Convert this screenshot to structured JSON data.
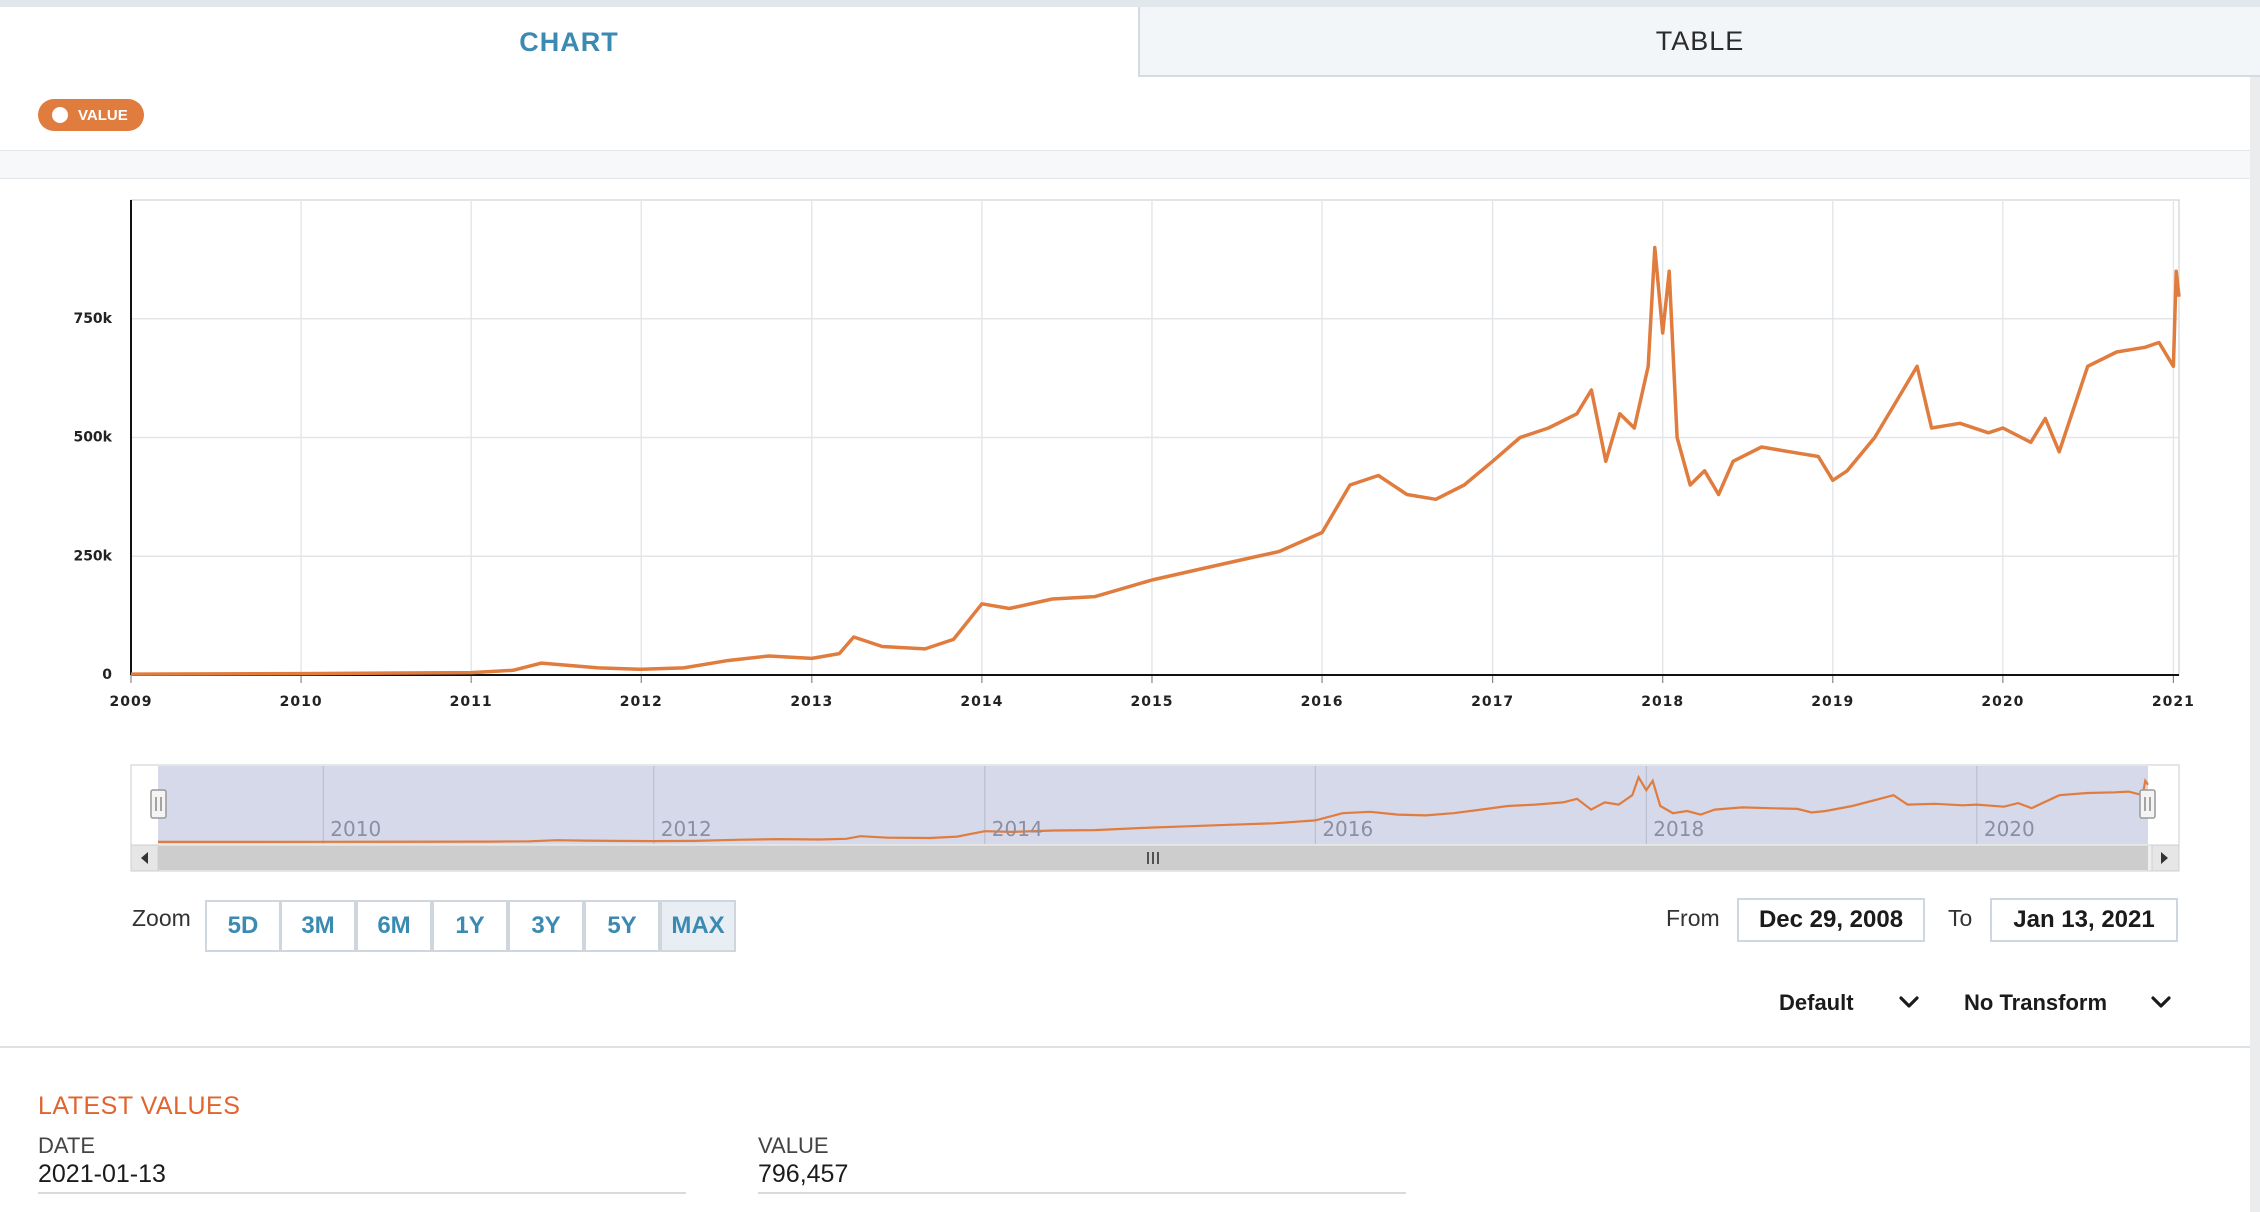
{
  "tabs": {
    "chart": "CHART",
    "table": "TABLE"
  },
  "legend": {
    "series_label": "VALUE"
  },
  "chart_data": {
    "type": "line",
    "title": "",
    "xlabel": "",
    "ylabel": "",
    "x_ticks": [
      "2009",
      "2010",
      "2011",
      "2012",
      "2013",
      "2014",
      "2015",
      "2016",
      "2017",
      "2018",
      "2019",
      "2020",
      "2021"
    ],
    "y_ticks": [
      "0",
      "250k",
      "500k",
      "750k"
    ],
    "xlim": [
      "2009-01-01",
      "2021-01-13"
    ],
    "ylim": [
      0,
      1000000
    ],
    "line_color": "#e07c3e",
    "grid": true,
    "series": [
      {
        "x": [
          "2009-01-01",
          "2010-01-01",
          "2011-01-01",
          "2011-04-01",
          "2011-06-01",
          "2011-08-01",
          "2011-10-01",
          "2012-01-01",
          "2012-04-01",
          "2012-07-01",
          "2012-10-01",
          "2013-01-01",
          "2013-03-01",
          "2013-04-01",
          "2013-06-01",
          "2013-09-01",
          "2013-11-01",
          "2014-01-01",
          "2014-03-01",
          "2014-06-01",
          "2014-09-01",
          "2015-01-01",
          "2015-04-01",
          "2015-07-01",
          "2015-10-01",
          "2016-01-01",
          "2016-03-01",
          "2016-05-01",
          "2016-07-01",
          "2016-09-01",
          "2016-11-01",
          "2017-01-01",
          "2017-03-01",
          "2017-05-01",
          "2017-07-01",
          "2017-08-01",
          "2017-09-01",
          "2017-10-01",
          "2017-11-01",
          "2017-12-01",
          "2017-12-15",
          "2018-01-01",
          "2018-01-15",
          "2018-02-01",
          "2018-03-01",
          "2018-04-01",
          "2018-05-01",
          "2018-06-01",
          "2018-08-01",
          "2018-10-01",
          "2018-12-01",
          "2019-01-01",
          "2019-02-01",
          "2019-04-01",
          "2019-06-01",
          "2019-07-01",
          "2019-08-01",
          "2019-10-01",
          "2019-12-01",
          "2020-01-01",
          "2020-03-01",
          "2020-04-01",
          "2020-05-01",
          "2020-07-01",
          "2020-09-01",
          "2020-11-01",
          "2020-12-01",
          "2021-01-01",
          "2021-01-07",
          "2021-01-13"
        ],
        "values": [
          2000,
          3000,
          5000,
          10000,
          25000,
          20000,
          15000,
          12000,
          15000,
          30000,
          40000,
          35000,
          45000,
          80000,
          60000,
          55000,
          75000,
          150000,
          140000,
          160000,
          165000,
          200000,
          220000,
          240000,
          260000,
          300000,
          400000,
          420000,
          380000,
          370000,
          400000,
          450000,
          500000,
          520000,
          550000,
          600000,
          450000,
          550000,
          520000,
          650000,
          900000,
          720000,
          850000,
          500000,
          400000,
          430000,
          380000,
          450000,
          480000,
          470000,
          460000,
          410000,
          430000,
          500000,
          600000,
          650000,
          520000,
          530000,
          510000,
          520000,
          490000,
          540000,
          470000,
          650000,
          680000,
          690000,
          700000,
          650000,
          850000,
          796457
        ]
      }
    ]
  },
  "navigator": {
    "labels": [
      "2010",
      "2012",
      "2014",
      "2016",
      "2018",
      "2020"
    ]
  },
  "zoom": {
    "label": "Zoom",
    "buttons": [
      "5D",
      "3M",
      "6M",
      "1Y",
      "3Y",
      "5Y",
      "MAX"
    ],
    "active": "MAX"
  },
  "range": {
    "from_label": "From",
    "from_value": "Dec 29, 2008",
    "to_label": "To",
    "to_value": "Jan 13, 2021"
  },
  "selects": {
    "frequency": "Default",
    "transform": "No Transform"
  },
  "latest": {
    "title": "LATEST VALUES",
    "date_label": "DATE",
    "date_value": "2021-01-13",
    "value_label": "VALUE",
    "value_value": "796,457"
  }
}
